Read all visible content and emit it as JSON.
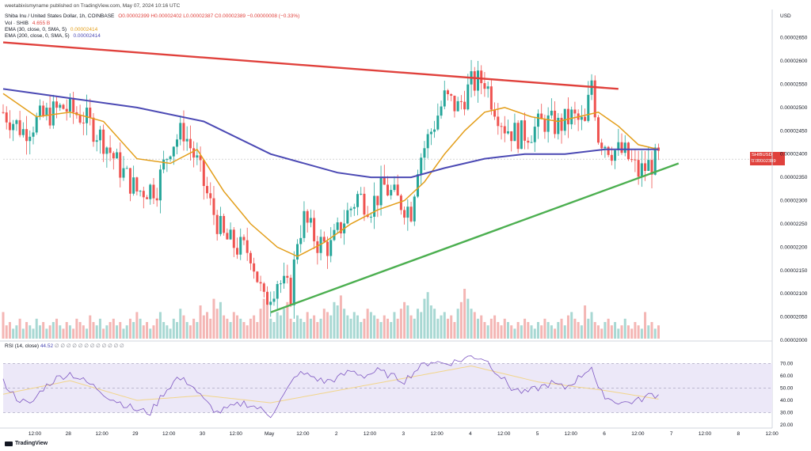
{
  "header": {
    "published": "weetabixismyname published on TradingView.com, May 07, 2024 10:16 UTC",
    "symbol": "Shiba Inu / United States Dollar, 1h, COINBASE",
    "ohlc": "O0.00002399 H0.00002402 L0.00002387 C0.00002389 −0.00000008 (−0.33%)",
    "vol_label": "Vol · SHIB",
    "vol_value": "4.655 B",
    "ema30_label": "EMA (30, close, 0, SMA, 5)",
    "ema30_value": "0.00002414",
    "ema200_label": "EMA (200, close, 0, SMA, 5)",
    "ema200_value": "0.00002414",
    "rsi_label": "RSI (14, close)",
    "rsi_value": "44.52",
    "rsi_extra": "∅ ∅ ∅ ∅ ∅ ∅ ∅ ∅ ∅ ∅ ∅ ∅",
    "currency": "USD",
    "price_box_symbol": "SHIBUSD",
    "price_box_price": "0.00002389",
    "price_box_time": "43:58",
    "brand": "TradingView"
  },
  "colors": {
    "up": "#26a69a",
    "down": "#ef5350",
    "ema30": "#e39e1a",
    "ema200": "#4b49b4",
    "resistance": "#e0413c",
    "support": "#4caf50",
    "rsi": "#7e57c2",
    "rsi_band": "#ece8f8"
  },
  "chart_data": [
    {
      "type": "candlestick",
      "title": "Shiba Inu / United States Dollar, 1h, COINBASE",
      "y_axis_ticks": [
        "0.00002650",
        "0.00002600",
        "0.00002550",
        "0.00002500",
        "0.00002450",
        "0.00002400",
        "0.00002350",
        "0.00002300",
        "0.00002250",
        "0.00002200",
        "0.00002150",
        "0.00002100",
        "0.00002050",
        "0.00002000"
      ],
      "ylim": [
        2e-05,
        2.68e-05
      ],
      "x_axis_ticks": [
        "12:00",
        "28",
        "12:00",
        "29",
        "12:00",
        "30",
        "12:00",
        "May",
        "12:00",
        "2",
        "12:00",
        "3",
        "12:00",
        "4",
        "12:00",
        "5",
        "12:00",
        "6",
        "12:00",
        "7",
        "12:00",
        "8",
        "12:00"
      ],
      "close_path": [
        [
          0,
          2.49e-05
        ],
        [
          6,
          2.45e-05
        ],
        [
          12,
          2.48e-05
        ],
        [
          18,
          2.5e-05
        ],
        [
          24,
          2.48e-05
        ],
        [
          30,
          2.43e-05
        ],
        [
          34,
          2.38e-05
        ],
        [
          40,
          2.32e-05
        ],
        [
          46,
          2.33e-05
        ],
        [
          50,
          2.42e-05
        ],
        [
          54,
          2.45e-05
        ],
        [
          58,
          2.38e-05
        ],
        [
          62,
          2.29e-05
        ],
        [
          66,
          2.22e-05
        ],
        [
          70,
          2.2e-05
        ],
        [
          74,
          2.19e-05
        ],
        [
          78,
          2.08e-05
        ],
        [
          82,
          2.13e-05
        ],
        [
          86,
          2.1e-05
        ],
        [
          88,
          2.22e-05
        ],
        [
          90,
          2.26e-05
        ],
        [
          94,
          2.21e-05
        ],
        [
          98,
          2.2e-05
        ],
        [
          102,
          2.26e-05
        ],
        [
          106,
          2.31e-05
        ],
        [
          110,
          2.29e-05
        ],
        [
          114,
          2.33e-05
        ],
        [
          118,
          2.3e-05
        ],
        [
          122,
          2.28e-05
        ],
        [
          124,
          2.38e-05
        ],
        [
          128,
          2.45e-05
        ],
        [
          132,
          2.52e-05
        ],
        [
          136,
          2.5e-05
        ],
        [
          140,
          2.55e-05
        ],
        [
          144,
          2.56e-05
        ],
        [
          146,
          2.52e-05
        ],
        [
          150,
          2.46e-05
        ],
        [
          154,
          2.44e-05
        ],
        [
          158,
          2.45e-05
        ],
        [
          162,
          2.47e-05
        ],
        [
          166,
          2.46e-05
        ],
        [
          170,
          2.48e-05
        ],
        [
          174,
          2.46e-05
        ],
        [
          176,
          2.56e-05
        ],
        [
          178,
          2.44e-05
        ],
        [
          182,
          2.41e-05
        ],
        [
          186,
          2.4e-05
        ],
        [
          190,
          2.36e-05
        ],
        [
          194,
          2.38e-05
        ],
        [
          196,
          2.39e-05
        ]
      ],
      "series": [
        {
          "name": "EMA (30, close, 0, SMA, 5)",
          "color": "#e39e1a",
          "values": [
            [
              0,
              2.53e-05
            ],
            [
              10,
              2.48e-05
            ],
            [
              20,
              2.49e-05
            ],
            [
              30,
              2.47e-05
            ],
            [
              40,
              2.39e-05
            ],
            [
              50,
              2.38e-05
            ],
            [
              58,
              2.41e-05
            ],
            [
              66,
              2.32e-05
            ],
            [
              74,
              2.25e-05
            ],
            [
              82,
              2.2e-05
            ],
            [
              88,
              2.18e-05
            ],
            [
              96,
              2.21e-05
            ],
            [
              104,
              2.25e-05
            ],
            [
              112,
              2.28e-05
            ],
            [
              120,
              2.3e-05
            ],
            [
              126,
              2.34e-05
            ],
            [
              132,
              2.4e-05
            ],
            [
              138,
              2.45e-05
            ],
            [
              144,
              2.49e-05
            ],
            [
              150,
              2.5e-05
            ],
            [
              158,
              2.48e-05
            ],
            [
              166,
              2.47e-05
            ],
            [
              172,
              2.48e-05
            ],
            [
              178,
              2.49e-05
            ],
            [
              184,
              2.46e-05
            ],
            [
              190,
              2.42e-05
            ],
            [
              196,
              2.41e-05
            ]
          ]
        },
        {
          "name": "EMA (200, close, 0, SMA, 5)",
          "color": "#4b49b4",
          "values": [
            [
              0,
              2.54e-05
            ],
            [
              20,
              2.52e-05
            ],
            [
              40,
              2.5e-05
            ],
            [
              60,
              2.47e-05
            ],
            [
              80,
              2.4e-05
            ],
            [
              100,
              2.36e-05
            ],
            [
              110,
              2.35e-05
            ],
            [
              122,
              2.35e-05
            ],
            [
              132,
              2.37e-05
            ],
            [
              144,
              2.39e-05
            ],
            [
              156,
              2.4e-05
            ],
            [
              168,
              2.4e-05
            ],
            [
              180,
              2.41e-05
            ],
            [
              196,
              2.41e-05
            ]
          ]
        }
      ],
      "trendlines": [
        {
          "name": "resistance",
          "color": "#e0413c",
          "from": [
            0,
            2.64e-05
          ],
          "to": [
            184,
            2.54e-05
          ]
        },
        {
          "name": "support",
          "color": "#4caf50",
          "from": [
            80,
            2.06e-05
          ],
          "to": [
            202,
            2.38e-05
          ]
        }
      ],
      "last_price": "0.00002389"
    },
    {
      "type": "line",
      "title": "RSI (14, close)",
      "y_axis_ticks": [
        "70.00",
        "60.00",
        "50.00",
        "40.00",
        "30.00",
        "20.00"
      ],
      "ylim": [
        20,
        78
      ],
      "band": [
        30,
        70
      ],
      "midline": 50,
      "values": [
        [
          0,
          55
        ],
        [
          4,
          42
        ],
        [
          8,
          36
        ],
        [
          12,
          50
        ],
        [
          16,
          58
        ],
        [
          20,
          62
        ],
        [
          24,
          56
        ],
        [
          28,
          50
        ],
        [
          32,
          42
        ],
        [
          36,
          37
        ],
        [
          40,
          32
        ],
        [
          44,
          30
        ],
        [
          48,
          46
        ],
        [
          52,
          58
        ],
        [
          56,
          54
        ],
        [
          60,
          40
        ],
        [
          64,
          30
        ],
        [
          68,
          34
        ],
        [
          72,
          38
        ],
        [
          76,
          34
        ],
        [
          80,
          28
        ],
        [
          84,
          44
        ],
        [
          88,
          62
        ],
        [
          92,
          60
        ],
        [
          96,
          55
        ],
        [
          100,
          58
        ],
        [
          104,
          64
        ],
        [
          108,
          60
        ],
        [
          112,
          64
        ],
        [
          116,
          60
        ],
        [
          120,
          56
        ],
        [
          124,
          66
        ],
        [
          128,
          72
        ],
        [
          132,
          70
        ],
        [
          136,
          72
        ],
        [
          140,
          76
        ],
        [
          144,
          74
        ],
        [
          148,
          62
        ],
        [
          152,
          50
        ],
        [
          156,
          46
        ],
        [
          160,
          50
        ],
        [
          164,
          54
        ],
        [
          168,
          50
        ],
        [
          172,
          58
        ],
        [
          176,
          68
        ],
        [
          178,
          48
        ],
        [
          182,
          40
        ],
        [
          186,
          38
        ],
        [
          190,
          40
        ],
        [
          194,
          45
        ],
        [
          196,
          44
        ]
      ],
      "signal": [
        [
          0,
          45
        ],
        [
          20,
          56
        ],
        [
          40,
          40
        ],
        [
          60,
          44
        ],
        [
          80,
          38
        ],
        [
          100,
          48
        ],
        [
          120,
          58
        ],
        [
          140,
          68
        ],
        [
          160,
          55
        ],
        [
          180,
          48
        ],
        [
          196,
          41
        ]
      ]
    }
  ],
  "volume": {
    "label": "Vol · SHIB",
    "values": [
      8,
      4,
      5,
      3,
      4,
      6,
      3,
      5,
      4,
      3,
      6,
      4,
      5,
      3,
      4,
      5,
      6,
      4,
      3,
      5,
      4,
      3,
      6,
      5,
      4,
      3,
      7,
      5,
      4,
      6,
      3,
      4,
      5,
      6,
      4,
      5,
      3,
      4,
      6,
      5,
      8,
      6,
      4,
      5,
      3,
      4,
      6,
      8,
      5,
      4,
      3,
      6,
      5,
      9,
      7,
      5,
      4,
      6,
      5,
      10,
      7,
      8,
      6,
      12,
      9,
      11,
      7,
      6,
      5,
      8,
      7,
      6,
      5,
      4,
      6,
      7,
      5,
      9,
      12,
      10,
      6,
      5,
      8,
      7,
      9,
      11,
      6,
      5,
      7,
      6,
      5,
      8,
      6,
      7,
      5,
      6,
      9,
      8,
      7,
      11,
      10,
      13,
      9,
      7,
      6,
      8,
      7,
      5,
      6,
      9,
      8,
      7,
      6,
      5,
      7,
      6,
      5,
      8,
      6,
      9,
      11,
      10,
      7,
      6,
      9,
      8,
      12,
      14,
      10,
      9,
      6,
      7,
      8,
      6,
      7,
      5,
      9,
      11,
      15,
      12,
      9,
      8,
      6,
      7,
      5,
      4,
      6,
      7,
      5,
      4,
      6,
      5,
      4,
      3,
      5,
      4,
      6,
      5,
      4,
      3,
      5,
      4,
      6,
      5,
      4,
      3,
      5,
      6,
      4,
      7,
      8,
      6,
      5,
      4,
      10,
      6,
      8,
      5,
      4,
      3,
      5,
      6,
      4,
      5,
      3,
      4,
      6,
      4,
      3,
      5,
      4,
      3
    ]
  }
}
